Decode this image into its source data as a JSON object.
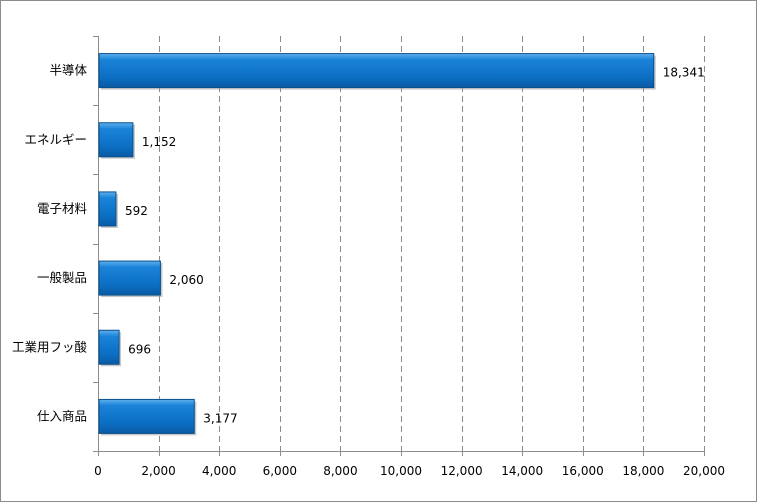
{
  "chart_data": {
    "type": "bar",
    "orientation": "horizontal",
    "categories": [
      "半導体",
      "エネルギー",
      "電子材料",
      "一般製品",
      "工業用フッ酸",
      "仕入商品"
    ],
    "values": [
      18341,
      1152,
      592,
      2060,
      696,
      3177
    ],
    "data_labels": [
      "18,341",
      "1,152",
      "592",
      "2,060",
      "696",
      "3,177"
    ],
    "xlim": [
      0,
      20000
    ],
    "x_ticks": [
      0,
      2000,
      4000,
      6000,
      8000,
      10000,
      12000,
      14000,
      16000,
      18000,
      20000
    ],
    "x_tick_labels": [
      "0",
      "2,000",
      "4,000",
      "6,000",
      "8,000",
      "10,000",
      "12,000",
      "14,000",
      "16,000",
      "18,000",
      "20,000"
    ],
    "grid": "vertical dashed",
    "legend": "none",
    "title": "",
    "xlabel": "",
    "ylabel": "",
    "colors": {
      "bar": "#0b72c9",
      "bar_edge": "#0a4f8c",
      "grid": "#8c8c8c"
    }
  }
}
